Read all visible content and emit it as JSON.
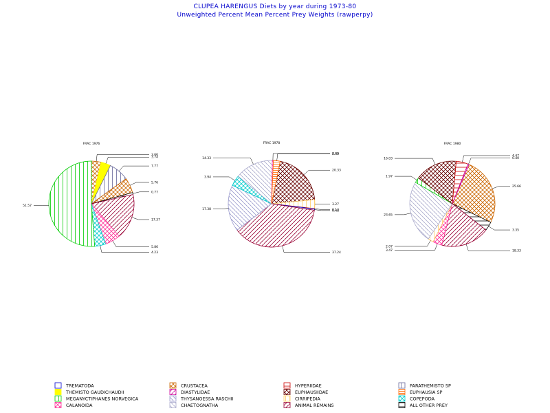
{
  "titles": {
    "line1": "CLUPEA HARENGUS Diets by year during 1973-80",
    "line2": "Unweighted Percent Mean Percent Prey  Weights (rawperpy)"
  },
  "chart_data": {
    "type": "pie",
    "pies": [
      {
        "label": "FRAC 1976",
        "slices": [
          {
            "category": "CRUSTACEA",
            "value": 3.66
          },
          {
            "category": "THEMISTO GAUDICHAUDII",
            "value": 3.74
          },
          {
            "category": "PARATHEMISTO SP",
            "value": 7.77
          },
          {
            "category": "CRUSTACEA",
            "value": 5.76
          },
          {
            "category": "ALL OTHER PREY",
            "value": 0.77
          },
          {
            "category": "ANIMAL REMAINS",
            "value": 17.37
          },
          {
            "category": "CALANOIDA",
            "value": 5.86
          },
          {
            "category": "COPEPODA",
            "value": 4.23
          },
          {
            "category": "MEGANYCTIPHANES NORVEGICA",
            "value": 51.57
          }
        ],
        "labels": [
          "3.66",
          "3.74",
          "7.77",
          "5.76",
          "0.77",
          "17.37",
          "5.86",
          "51.57"
        ]
      },
      {
        "label": "FRAC 1978",
        "slices": [
          {
            "category": "EUPHAUSIIDAE",
            "value": 20.33
          },
          {
            "category": "CIRRIPEDIA",
            "value": 3.27
          },
          {
            "category": "HYPERIIDAE",
            "value": 0.13
          },
          {
            "category": "TREMATODA",
            "value": 0.48
          },
          {
            "category": "ANIMAL REMAINS",
            "value": 37.24
          },
          {
            "category": "THYSANOESSA RASCHII",
            "value": 17.38
          },
          {
            "category": "COPEPODA",
            "value": 3.94
          },
          {
            "category": "CHAETOGNATHA",
            "value": 14.33
          },
          {
            "category": "CALANOIDA",
            "value": 0.4
          },
          {
            "category": "EUPHAUSIA SP",
            "value": 2.5
          }
        ],
        "labels": [
          "20.33",
          "3.27",
          "0.13",
          "0.48",
          "37.24",
          "17.38",
          "3.94",
          "14.33",
          "0.40"
        ]
      },
      {
        "label": "FRAC 1980",
        "slices": [
          {
            "category": "CRUSTACEA",
            "value": 25.66
          },
          {
            "category": "ALL OTHER PREY",
            "value": 3.35
          },
          {
            "category": "ANIMAL REMAINS",
            "value": 18.33
          },
          {
            "category": "CALANOIDA",
            "value": 3.47
          },
          {
            "category": "CIRRIPEDIA",
            "value": 2.07
          },
          {
            "category": "CHAETOGNATHA",
            "value": 23.65
          },
          {
            "category": "MEGANYCTIPHANES NORVEGICA",
            "value": 1.97
          },
          {
            "category": "EUPHAUSIIDAE",
            "value": 16.03
          },
          {
            "category": "HYPERIIDAE",
            "value": 4.47
          },
          {
            "category": "DIASTYLIDAE",
            "value": 0.4
          }
        ],
        "labels": [
          "25.66",
          "3.35",
          "18.33",
          "3.47",
          "2.07",
          "23.65",
          "1.97",
          "16.03",
          "4.47",
          "0.40"
        ]
      }
    ],
    "legend": [
      {
        "name": "TREMATODA",
        "color": "#0000cc",
        "pattern": "none"
      },
      {
        "name": "CRUSTACEA",
        "color": "#cc6600",
        "pattern": "cross"
      },
      {
        "name": "HYPERIIDAE",
        "color": "#cc0000",
        "pattern": "hlines"
      },
      {
        "name": "PARATHEMISTO SP",
        "color": "#666699",
        "pattern": "vlines"
      },
      {
        "name": "THEMISTO GAUDICHAUDII",
        "color": "#ffff00",
        "pattern": "solid"
      },
      {
        "name": "DIASTYLIDAE",
        "color": "#cc0099",
        "pattern": "fdiag"
      },
      {
        "name": "EUPHAUSIIDAE",
        "color": "#660000",
        "pattern": "dcross"
      },
      {
        "name": "EUPHAUSIA SP",
        "color": "#ff6600",
        "pattern": "hlines2"
      },
      {
        "name": "MEGANYCTIPHANES NORVEGICA",
        "color": "#00cc00",
        "pattern": "vlines"
      },
      {
        "name": "THYSANOESSA RASCHII",
        "color": "#9999cc",
        "pattern": "bdiag"
      },
      {
        "name": "CIRRIPEDIA",
        "color": "#ffcc66",
        "pattern": "vlines"
      },
      {
        "name": "COPEPODA",
        "color": "#00cccc",
        "pattern": "dcross"
      },
      {
        "name": "CALANOIDA",
        "color": "#ff3399",
        "pattern": "dcross"
      },
      {
        "name": "CHAETOGNATHA",
        "color": "#aaaacc",
        "pattern": "bdiag"
      },
      {
        "name": "ANIMAL REMAINS",
        "color": "#990033",
        "pattern": "fdiag"
      },
      {
        "name": "ALL OTHER PREY",
        "color": "#000000",
        "pattern": "hlines"
      }
    ]
  }
}
